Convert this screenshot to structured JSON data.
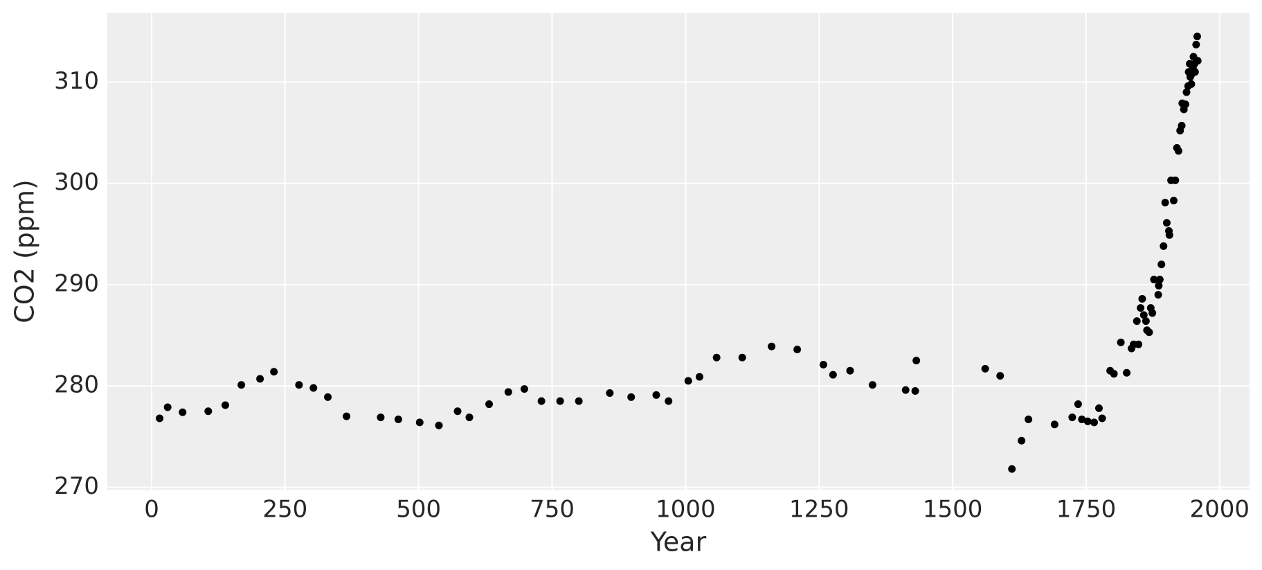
{
  "chart_data": {
    "type": "scatter",
    "xlabel": "Year",
    "ylabel": "CO2 (ppm)",
    "x": [
      15,
      30,
      58,
      106,
      138,
      168,
      203,
      229,
      276,
      303,
      330,
      365,
      429,
      462,
      502,
      538,
      573,
      595,
      632,
      668,
      698,
      730,
      765,
      800,
      858,
      898,
      945,
      968,
      1005,
      1026,
      1058,
      1106,
      1161,
      1209,
      1258,
      1276,
      1308,
      1350,
      1412,
      1430,
      1432,
      1561,
      1589,
      1611,
      1629,
      1642,
      1691,
      1724,
      1735,
      1742,
      1753,
      1765,
      1774,
      1780,
      1795,
      1802,
      1815,
      1826,
      1835,
      1839,
      1845,
      1848,
      1852,
      1855,
      1858,
      1862,
      1864,
      1868,
      1871,
      1874,
      1877,
      1885,
      1886,
      1888,
      1891,
      1895,
      1898,
      1901,
      1905,
      1906,
      1909,
      1914,
      1917,
      1920,
      1923,
      1926,
      1929,
      1930,
      1933,
      1936,
      1938,
      1941,
      1942,
      1944,
      1945,
      1947,
      1948,
      1950,
      1951,
      1953,
      1954,
      1956,
      1958,
      1959
    ],
    "values": [
      276.8,
      277.9,
      277.4,
      277.5,
      278.1,
      280.1,
      280.7,
      281.4,
      280.1,
      279.8,
      278.9,
      277.0,
      276.9,
      276.7,
      276.4,
      276.1,
      277.5,
      276.9,
      278.2,
      279.4,
      279.7,
      278.5,
      278.5,
      278.5,
      279.3,
      278.9,
      279.1,
      278.5,
      280.5,
      280.9,
      282.8,
      282.8,
      283.9,
      283.6,
      282.1,
      281.1,
      281.5,
      280.1,
      279.6,
      279.5,
      282.5,
      281.7,
      281.0,
      271.8,
      274.6,
      276.7,
      276.2,
      276.9,
      278.2,
      276.7,
      276.5,
      276.4,
      277.8,
      276.8,
      281.5,
      281.2,
      284.3,
      281.3,
      283.7,
      284.1,
      286.4,
      284.1,
      287.7,
      288.6,
      287.0,
      286.4,
      285.5,
      285.3,
      287.7,
      287.2,
      290.5,
      289.0,
      289.9,
      290.5,
      292.0,
      293.8,
      298.1,
      296.1,
      295.3,
      294.9,
      300.3,
      298.3,
      300.3,
      303.5,
      303.2,
      305.2,
      305.7,
      307.9,
      307.3,
      307.8,
      309.0,
      309.6,
      311.0,
      311.8,
      310.5,
      309.8,
      310.8,
      311.4,
      312.5,
      311.8,
      311.0,
      313.7,
      314.5,
      312.1
    ],
    "color": "#000000",
    "xlim": [
      -83,
      2056
    ],
    "ylim": [
      269.76,
      316.8
    ],
    "xticks": [
      0,
      250,
      500,
      750,
      1000,
      1250,
      1500,
      1750,
      2000
    ],
    "yticks": [
      270,
      280,
      290,
      300,
      310
    ],
    "grid": true
  }
}
